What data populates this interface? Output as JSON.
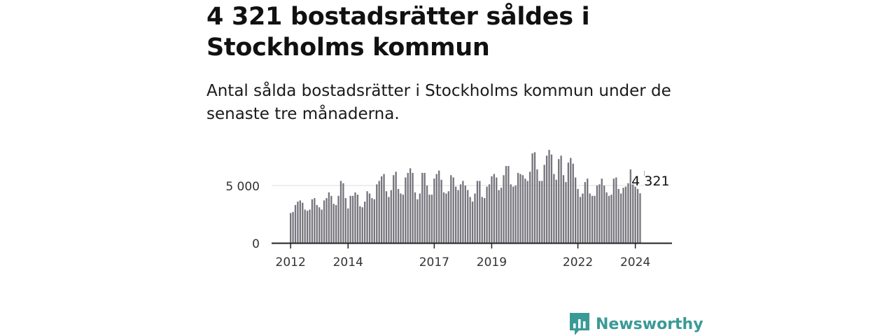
{
  "header": {
    "title": "4 321 bostadsrätter såldes i Stockholms kommun",
    "subtitle": "Antal sålda bostadsrätter i Stockholms kommun under de senaste tre månaderna."
  },
  "brand": {
    "name": "Newsworthy",
    "logo_icon": "newsworthy-logo-icon",
    "color": "#3a9a96"
  },
  "colors": {
    "bar": "#75747c",
    "highlight": "#1fa3a3",
    "axis": "#222222",
    "grid": "#dddddd"
  },
  "chart_data": {
    "type": "bar",
    "ylim": [
      0,
      8500
    ],
    "y_ticks": [
      {
        "value": 0,
        "label": "0"
      },
      {
        "value": 5000,
        "label": "5 000"
      }
    ],
    "x_ticks": [
      {
        "index": 0,
        "label": "2012"
      },
      {
        "index": 24,
        "label": "2014"
      },
      {
        "index": 60,
        "label": "2017"
      },
      {
        "index": 84,
        "label": "2019"
      },
      {
        "index": 120,
        "label": "2022"
      },
      {
        "index": 144,
        "label": "2024"
      }
    ],
    "annotation": {
      "index": 151,
      "label": "4 321"
    },
    "highlight_index": 151,
    "values": [
      2600,
      2700,
      3300,
      3600,
      3700,
      3500,
      2900,
      2800,
      2900,
      3800,
      3900,
      3300,
      3100,
      2900,
      3700,
      3900,
      4400,
      4100,
      3400,
      3300,
      4100,
      5400,
      5200,
      3900,
      3000,
      4100,
      4100,
      4400,
      4200,
      3200,
      3100,
      3600,
      4500,
      4300,
      3900,
      3800,
      5100,
      5400,
      5800,
      6000,
      4500,
      4000,
      4600,
      5900,
      6200,
      4700,
      4300,
      4200,
      5700,
      6100,
      6500,
      6100,
      4400,
      3800,
      4300,
      6100,
      6100,
      5000,
      4200,
      4200,
      5600,
      6000,
      6300,
      5500,
      4400,
      4300,
      4500,
      5900,
      5700,
      4900,
      4600,
      5100,
      5400,
      5000,
      4600,
      4000,
      3600,
      4300,
      5400,
      5400,
      4000,
      3900,
      4900,
      5100,
      5800,
      6000,
      5700,
      4600,
      4800,
      5900,
      6700,
      6700,
      5100,
      4900,
      5000,
      6100,
      6000,
      5900,
      5600,
      5400,
      6200,
      7800,
      7900,
      6400,
      5400,
      5400,
      6800,
      7600,
      8100,
      7700,
      6000,
      5500,
      7300,
      7600,
      5900,
      5300,
      7000,
      7400,
      6900,
      5700,
      4700,
      4000,
      4300,
      5300,
      5600,
      4300,
      4100,
      4100,
      5000,
      5100,
      5600,
      5000,
      4400,
      4100,
      4200,
      5600,
      5700,
      4700,
      4300,
      4800,
      4900,
      5200,
      6400,
      5100,
      4900,
      4700,
      4321
    ]
  }
}
